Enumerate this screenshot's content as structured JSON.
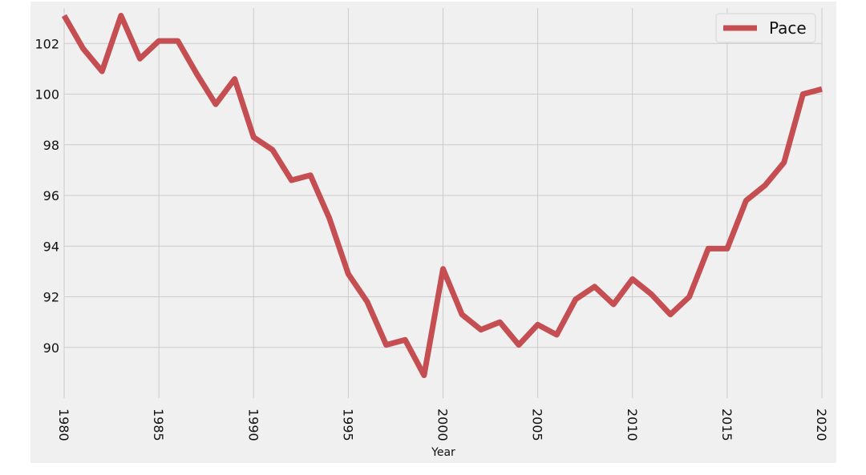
{
  "chart_data": {
    "type": "line",
    "title": "",
    "xlabel": "Year",
    "ylabel": "",
    "xlim": [
      1980,
      2020
    ],
    "ylim": [
      88.0,
      103.4
    ],
    "x_ticks": [
      "1980",
      "1985",
      "1990",
      "1995",
      "2000",
      "2005",
      "2010",
      "2015",
      "2020"
    ],
    "y_ticks": [
      "90",
      "92",
      "94",
      "96",
      "98",
      "100",
      "102"
    ],
    "grid": true,
    "legend_position": "top-right",
    "colors": {
      "background": "#f0f0f0",
      "grid": "#cbcbcb",
      "line": "#c44e52"
    },
    "series": [
      {
        "name": "Pace",
        "x": [
          1980,
          1981,
          1982,
          1983,
          1984,
          1985,
          1986,
          1987,
          1988,
          1989,
          1990,
          1991,
          1992,
          1993,
          1994,
          1995,
          1996,
          1997,
          1998,
          1999,
          2000,
          2001,
          2002,
          2003,
          2004,
          2005,
          2006,
          2007,
          2008,
          2009,
          2010,
          2011,
          2012,
          2013,
          2014,
          2015,
          2016,
          2017,
          2018,
          2019,
          2020
        ],
        "values": [
          103.1,
          101.8,
          100.9,
          103.1,
          101.4,
          102.1,
          102.1,
          100.8,
          99.6,
          100.6,
          98.3,
          97.8,
          96.6,
          96.8,
          95.1,
          92.9,
          91.8,
          90.1,
          90.3,
          88.9,
          93.1,
          91.3,
          90.7,
          91.0,
          90.1,
          90.9,
          90.5,
          91.9,
          92.4,
          91.7,
          92.7,
          92.1,
          91.3,
          92.0,
          93.9,
          93.9,
          95.8,
          96.4,
          97.3,
          100.0,
          100.2
        ]
      }
    ]
  }
}
